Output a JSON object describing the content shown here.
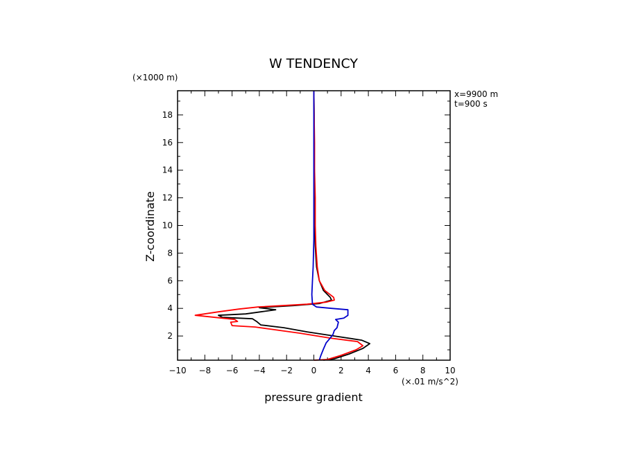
{
  "chart_data": {
    "type": "line",
    "title": "W TENDENCY",
    "xlabel": "pressure gradient",
    "ylabel": "Z-coordinate",
    "x_units": "(×.01 m/s^2)",
    "y_units": "(×1000 m)",
    "annotations": [
      "x=9900 m",
      "t=900 s"
    ],
    "xlim": [
      -10,
      10
    ],
    "ylim": [
      0.25,
      19.75
    ],
    "x_ticks": [
      -10,
      -8,
      -6,
      -4,
      -2,
      0,
      2,
      4,
      6,
      8,
      10
    ],
    "y_ticks": [
      2,
      4,
      6,
      8,
      10,
      12,
      14,
      16,
      18
    ],
    "grid": false,
    "series": [
      {
        "color": "#000000",
        "points": [
          [
            0.7,
            0.25
          ],
          [
            1.5,
            0.35
          ],
          [
            2.6,
            0.7
          ],
          [
            3.6,
            1.1
          ],
          [
            4.1,
            1.45
          ],
          [
            3.5,
            1.7
          ],
          [
            1.5,
            2.0
          ],
          [
            -0.5,
            2.3
          ],
          [
            -2.2,
            2.6
          ],
          [
            -3.9,
            2.8
          ],
          [
            -4.2,
            3.05
          ],
          [
            -4.5,
            3.25
          ],
          [
            -6.7,
            3.35
          ],
          [
            -7.0,
            3.5
          ],
          [
            -5.0,
            3.6
          ],
          [
            -3.9,
            3.75
          ],
          [
            -2.8,
            3.9
          ],
          [
            -4.0,
            4.05
          ],
          [
            -1.5,
            4.2
          ],
          [
            0.4,
            4.35
          ],
          [
            1.3,
            4.6
          ],
          [
            1.2,
            4.8
          ],
          [
            0.7,
            5.3
          ],
          [
            0.4,
            6.0
          ],
          [
            0.2,
            7.0
          ],
          [
            0.1,
            8.5
          ],
          [
            0.05,
            10.0
          ],
          [
            0.03,
            12.0
          ],
          [
            0.03,
            14.0
          ],
          [
            0.02,
            16.0
          ],
          [
            0.02,
            18.0
          ],
          [
            0.0,
            19.75
          ]
        ]
      },
      {
        "color": "#ff0000",
        "points": [
          [
            0.0,
            0.25
          ],
          [
            1.0,
            0.3
          ],
          [
            2.0,
            0.6
          ],
          [
            3.1,
            1.0
          ],
          [
            3.6,
            1.3
          ],
          [
            3.2,
            1.6
          ],
          [
            1.2,
            1.85
          ],
          [
            -1.0,
            2.2
          ],
          [
            -3.2,
            2.5
          ],
          [
            -4.3,
            2.65
          ],
          [
            -6.0,
            2.75
          ],
          [
            -6.1,
            3.0
          ],
          [
            -5.6,
            3.05
          ],
          [
            -5.8,
            3.2
          ],
          [
            -8.7,
            3.5
          ],
          [
            -7.0,
            3.75
          ],
          [
            -5.5,
            3.95
          ],
          [
            -4.1,
            4.1
          ],
          [
            -0.5,
            4.3
          ],
          [
            0.9,
            4.45
          ],
          [
            1.5,
            4.6
          ],
          [
            1.45,
            4.8
          ],
          [
            0.8,
            5.3
          ],
          [
            0.4,
            6.0
          ],
          [
            0.25,
            7.0
          ],
          [
            0.15,
            8.5
          ],
          [
            0.1,
            10.0
          ],
          [
            0.1,
            12.0
          ],
          [
            0.05,
            14.0
          ],
          [
            0.05,
            16.0
          ],
          [
            0.02,
            18.0
          ],
          [
            0.0,
            19.75
          ]
        ]
      },
      {
        "color": "#0000cc",
        "points": [
          [
            0.4,
            0.25
          ],
          [
            0.5,
            0.55
          ],
          [
            0.7,
            1.05
          ],
          [
            0.9,
            1.5
          ],
          [
            1.2,
            1.85
          ],
          [
            1.4,
            2.1
          ],
          [
            1.5,
            2.4
          ],
          [
            1.7,
            2.6
          ],
          [
            1.8,
            3.0
          ],
          [
            1.6,
            3.2
          ],
          [
            2.2,
            3.3
          ],
          [
            2.5,
            3.5
          ],
          [
            2.5,
            3.9
          ],
          [
            1.3,
            4.0
          ],
          [
            0.2,
            4.1
          ],
          [
            -0.1,
            4.3
          ],
          [
            -0.15,
            5.0
          ],
          [
            -0.1,
            6.0
          ],
          [
            -0.05,
            7.0
          ],
          [
            0.0,
            9.0
          ],
          [
            0.0,
            12.0
          ],
          [
            0.0,
            15.0
          ],
          [
            0.0,
            18.0
          ],
          [
            0.0,
            19.75
          ]
        ]
      }
    ]
  }
}
